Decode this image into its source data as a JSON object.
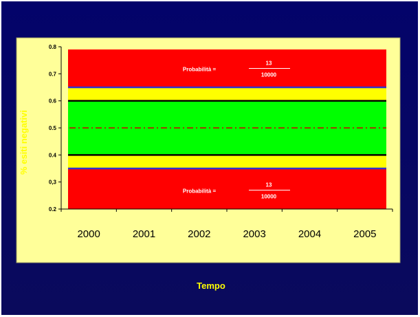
{
  "chart_data": {
    "type": "area",
    "title": "",
    "xlabel": "Tempo",
    "ylabel": "% esiti negativi",
    "categories": [
      "2000",
      "2001",
      "2002",
      "2003",
      "2004",
      "2005"
    ],
    "ylim": [
      0.2,
      0.8
    ],
    "yticks": [
      "0.2",
      "0,3",
      "0.4",
      "0.5",
      "0.6",
      "0.7",
      "0.8"
    ],
    "yticks_values": [
      0.2,
      0.3,
      0.4,
      0.5,
      0.6,
      0.7,
      0.8
    ],
    "bands": [
      {
        "name": "red-upper",
        "from": 0.65,
        "to": 0.79,
        "color": "#ff0000"
      },
      {
        "name": "yellow-upper",
        "from": 0.6,
        "to": 0.65,
        "color": "#ffff00"
      },
      {
        "name": "green",
        "from": 0.4,
        "to": 0.6,
        "color": "#00ff00"
      },
      {
        "name": "yellow-lower",
        "from": 0.35,
        "to": 0.4,
        "color": "#ffff00"
      },
      {
        "name": "red-lower",
        "from": 0.2,
        "to": 0.35,
        "color": "#ff0000"
      }
    ],
    "lines": [
      {
        "name": "upper-alarm-limit",
        "value": 0.65,
        "color": "#3333cc",
        "style": "solid"
      },
      {
        "name": "upper-warning-limit",
        "value": 0.6,
        "color": "#000000",
        "style": "solid"
      },
      {
        "name": "center-line",
        "value": 0.5,
        "color": "#cc0000",
        "style": "dash-dot"
      },
      {
        "name": "lower-warning-limit",
        "value": 0.4,
        "color": "#000000",
        "style": "solid"
      },
      {
        "name": "lower-alarm-limit",
        "value": 0.35,
        "color": "#3333cc",
        "style": "solid"
      }
    ],
    "annotations": [
      {
        "label": "Probabilità =",
        "numerator": "13",
        "denominator": "10000",
        "y": 0.72
      },
      {
        "label": "Probabilità =",
        "numerator": "13",
        "denominator": "10000",
        "y": 0.27
      }
    ],
    "colors": {
      "background": "#03036a",
      "panel": "#ffff99",
      "axis_label": "#ffff00"
    }
  }
}
